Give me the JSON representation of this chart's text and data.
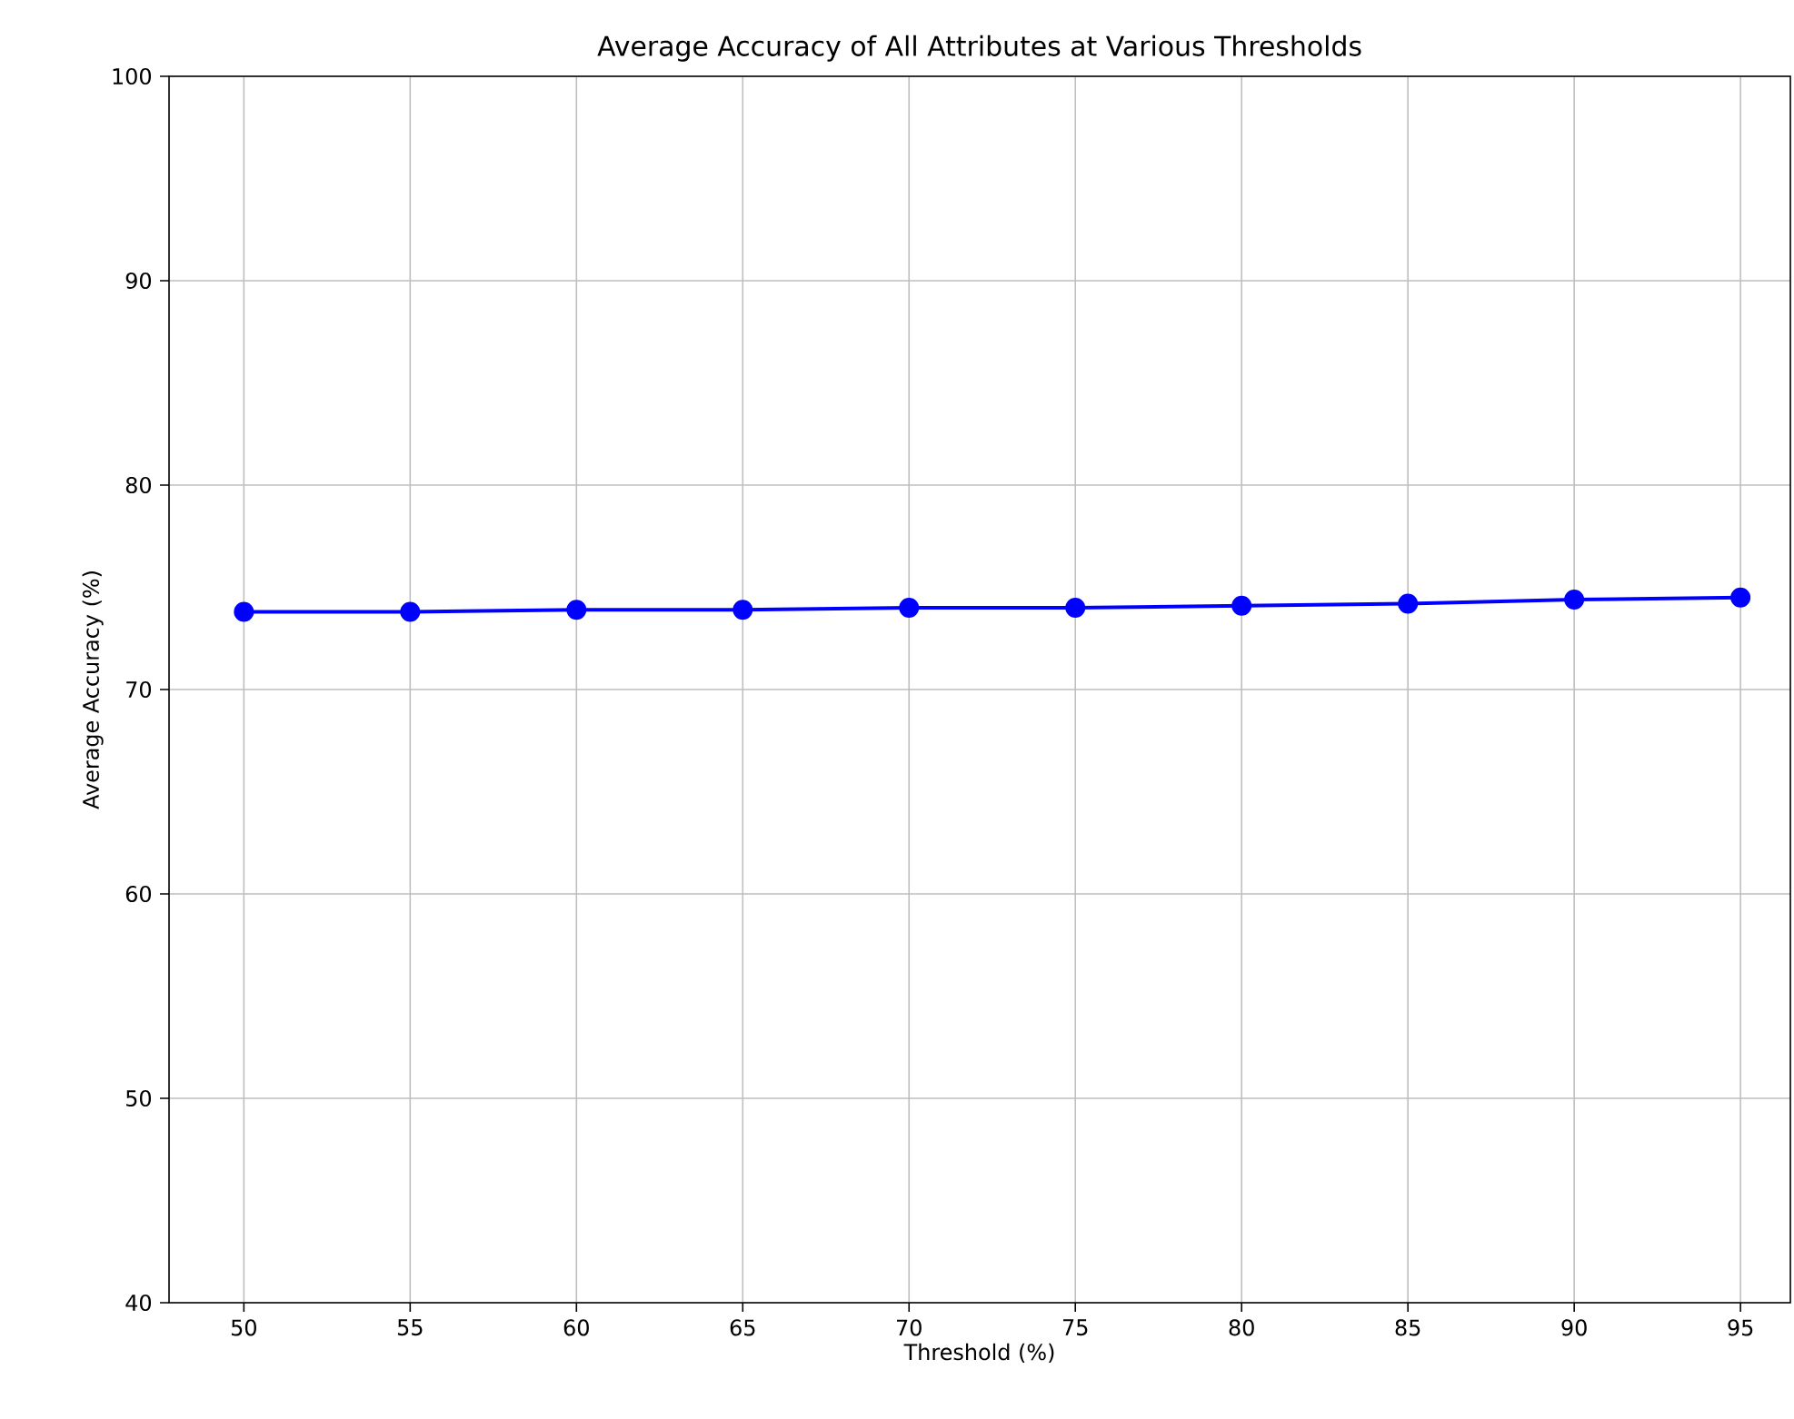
{
  "chart_data": {
    "type": "line",
    "title": "Average Accuracy of All Attributes at Various Thresholds",
    "xlabel": "Threshold (%)",
    "ylabel": "Average Accuracy (%)",
    "x": [
      50,
      55,
      60,
      65,
      70,
      75,
      80,
      85,
      90,
      95
    ],
    "series": [
      {
        "color": "#0000ff",
        "values": [
          73.8,
          73.8,
          73.9,
          73.9,
          74.0,
          74.0,
          74.1,
          74.2,
          74.4,
          74.5
        ]
      }
    ],
    "xlim": [
      47.75,
      96.5
    ],
    "ylim": [
      40,
      100
    ],
    "xticks": [
      50,
      55,
      60,
      65,
      70,
      75,
      80,
      85,
      90,
      95
    ],
    "yticks": [
      40,
      50,
      60,
      70,
      80,
      90,
      100
    ],
    "grid": true,
    "marker": "circle",
    "line_style": "solid"
  }
}
